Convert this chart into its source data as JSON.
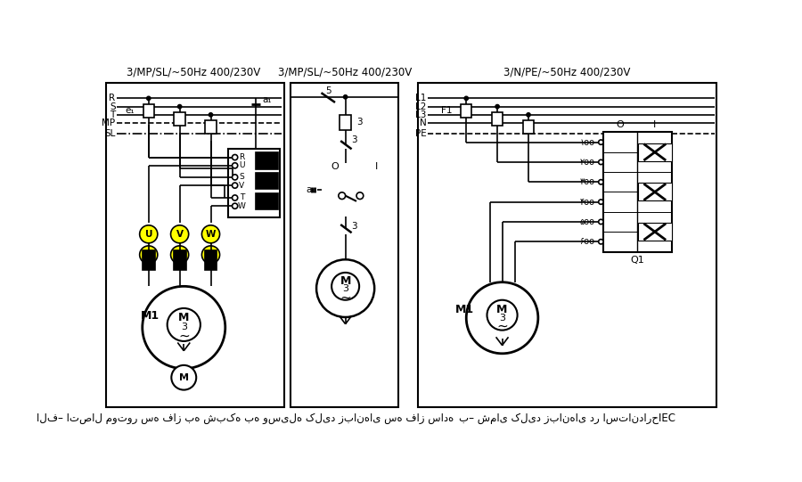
{
  "bg": "#ffffff",
  "left_panel_title": "3/MP/SL/~50Hz 400/230V",
  "mid_panel_title": "3/MP/SL/~50Hz 400/230V",
  "right_panel_title": "3/N/PE/~50Hz 400/230V",
  "left_caption": "الف– اتصال موتور سه فاز به شبکه به وسیله کلید زبانهای سه فاز ساده",
  "right_caption": "ب– شمای کلید زبانهای در استاندارحIEC",
  "cyan": "#40e0d0",
  "yellow": "#ffff00"
}
